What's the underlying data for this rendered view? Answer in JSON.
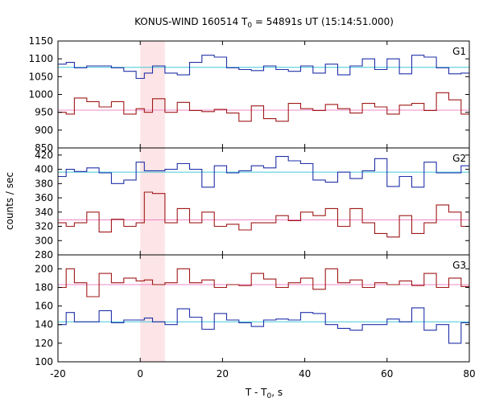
{
  "chart_data": {
    "type": "line",
    "title": "KONUS-WIND 160514 T",
    "title_sub": "0",
    "title_rest": " = 54891s UT (15:14:51.000)",
    "xlabel": "T - T",
    "xlabel_sub": "0",
    "xlabel_rest": ", s",
    "ylabel": "counts / sec",
    "xlim": [
      -20,
      80
    ],
    "xticks": [
      "-20",
      "0",
      "20",
      "40",
      "60",
      "80"
    ],
    "highlight": {
      "x0": 0,
      "x1": 6,
      "color": "#fde4e6"
    },
    "colors": {
      "blue": "#2030a8",
      "red": "#a01818",
      "cyan": "#40c8d8",
      "pink": "#ee88c8"
    },
    "bin_edges": [
      -20,
      -18,
      -16,
      -13,
      -10,
      -7,
      -4,
      -1,
      1,
      3,
      6,
      9,
      12,
      15,
      18,
      21,
      24,
      27,
      30,
      33,
      36,
      39,
      42,
      45,
      48,
      51,
      54,
      57,
      60,
      63,
      66,
      69,
      72,
      75,
      78,
      80
    ],
    "panels": [
      {
        "name": "G1",
        "ylim": [
          850,
          1150
        ],
        "yticks": [
          "850",
          "900",
          "950",
          "1000",
          "1050",
          "1100",
          "1150"
        ],
        "series": [
          {
            "name": "blue",
            "values": [
              1085,
              1090,
              1075,
              1080,
              1080,
              1075,
              1065,
              1045,
              1060,
              1080,
              1060,
              1055,
              1090,
              1110,
              1105,
              1075,
              1070,
              1067,
              1080,
              1070,
              1065,
              1080,
              1060,
              1085,
              1055,
              1080,
              1100,
              1070,
              1100,
              1058,
              1110,
              1105,
              1075,
              1058,
              1060
            ],
            "fit": 1076
          },
          {
            "name": "red",
            "values": [
              950,
              945,
              990,
              980,
              965,
              980,
              945,
              960,
              950,
              988,
              950,
              978,
              955,
              952,
              958,
              948,
              925,
              968,
              932,
              925,
              975,
              960,
              955,
              972,
              960,
              948,
              975,
              965,
              945,
              970,
              975,
              955,
              1005,
              985,
              945
            ],
            "fit": 956
          }
        ]
      },
      {
        "name": "G2",
        "ylim": [
          280,
          430
        ],
        "yticks": [
          "280",
          "300",
          "320",
          "340",
          "360",
          "380",
          "400",
          "420"
        ],
        "series": [
          {
            "name": "blue",
            "values": [
              390,
              400,
              397,
              402,
              395,
              380,
              385,
              410,
              398,
              398,
              400,
              408,
              400,
              375,
              405,
              395,
              398,
              405,
              402,
              418,
              412,
              408,
              385,
              382,
              396,
              387,
              398,
              415,
              376,
              390,
              375,
              410,
              395,
              395,
              405
            ],
            "fit": 396
          },
          {
            "name": "red",
            "values": [
              325,
              320,
              325,
              340,
              312,
              330,
              320,
              325,
              368,
              366,
              325,
              345,
              325,
              340,
              320,
              323,
              315,
              325,
              325,
              335,
              328,
              340,
              335,
              345,
              320,
              345,
              325,
              310,
              305,
              335,
              310,
              325,
              350,
              340,
              320
            ],
            "fit": 329
          }
        ]
      },
      {
        "name": "G3",
        "ylim": [
          100,
          215
        ],
        "yticks": [
          "100",
          "120",
          "140",
          "160",
          "180",
          "200"
        ],
        "series": [
          {
            "name": "blue",
            "values": [
              140,
              153,
              143,
              143,
              155,
              142,
              145,
              145,
              147,
              143,
              140,
              157,
              148,
              135,
              152,
              145,
              142,
              138,
              145,
              146,
              145,
              153,
              152,
              140,
              136,
              134,
              140,
              140,
              146,
              143,
              158,
              134,
              140,
              120,
              142
            ],
            "fit": 143
          },
          {
            "name": "red",
            "values": [
              180,
              200,
              185,
              170,
              195,
              185,
              190,
              187,
              188,
              183,
              185,
              200,
              185,
              188,
              180,
              183,
              182,
              195,
              189,
              180,
              185,
              190,
              178,
              200,
              185,
              188,
              180,
              185,
              183,
              187,
              182,
              195,
              180,
              190,
              181
            ],
            "fit": 183
          }
        ]
      }
    ]
  }
}
